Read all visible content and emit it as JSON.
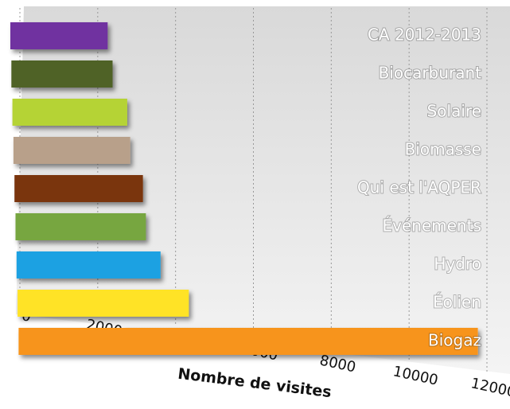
{
  "chart_data": {
    "type": "bar",
    "orientation": "horizontal",
    "categories": [
      "CA 2012-2013",
      "Biocarburant",
      "Solaire",
      "Biomasse",
      "Qui est l'AQPER",
      "Événements",
      "Hydro",
      "Éolien",
      "Biogaz"
    ],
    "values": [
      2500,
      2600,
      2950,
      3000,
      3300,
      3350,
      3700,
      4400,
      11800
    ],
    "colors": [
      "#7030a0",
      "#4f6228",
      "#b5d335",
      "#b8a08a",
      "#7a3410",
      "#77a640",
      "#1ba1e2",
      "#ffe326",
      "#f7941d"
    ],
    "xlabel": "Nombre de visites",
    "xlim": [
      0,
      12000
    ],
    "xticks": [
      0,
      2000,
      4000,
      6000,
      8000,
      10000,
      12000
    ],
    "grid": true
  }
}
